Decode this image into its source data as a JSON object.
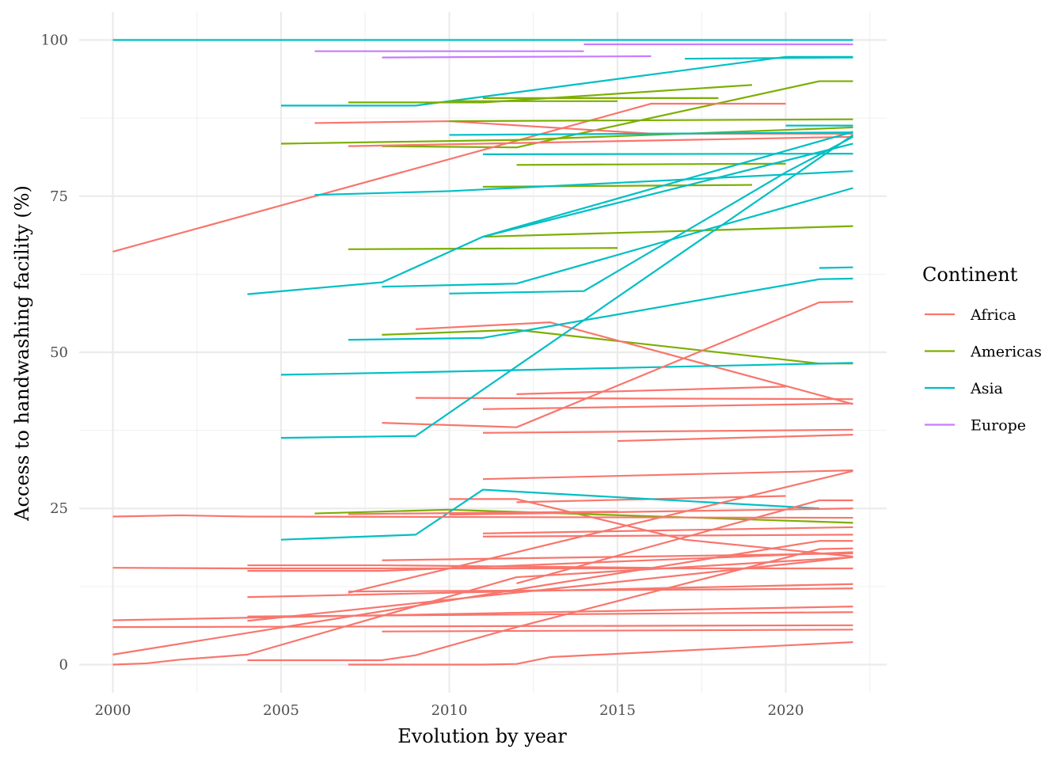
{
  "chart_data": {
    "type": "line",
    "title": "",
    "xlabel": "Evolution by year",
    "ylabel": "Access to handwashing facility (%)",
    "xlim": [
      1999,
      2023
    ],
    "ylim": [
      -4.5,
      104.5
    ],
    "x_ticks": [
      2000,
      2005,
      2010,
      2015,
      2020
    ],
    "y_ticks": [
      0,
      25,
      50,
      75,
      100
    ],
    "grid": true,
    "legend": {
      "title": "Continent",
      "position": "right"
    },
    "colors": {
      "Africa": "#F8766D",
      "Americas": "#7CAE00",
      "Asia": "#00BFC4",
      "Europe": "#C77CFF"
    },
    "series": [
      {
        "continent": "Asia",
        "points": [
          [
            2000,
            100
          ],
          [
            2022,
            100
          ]
        ]
      },
      {
        "continent": "Europe",
        "points": [
          [
            2006,
            98.2
          ],
          [
            2014,
            98.2
          ]
        ]
      },
      {
        "continent": "Europe",
        "points": [
          [
            2014,
            99.3
          ],
          [
            2022,
            99.3
          ]
        ]
      },
      {
        "continent": "Europe",
        "points": [
          [
            2008,
            97.2
          ],
          [
            2016,
            97.4
          ]
        ]
      },
      {
        "continent": "Asia",
        "points": [
          [
            2017,
            97.0
          ],
          [
            2022,
            97.2
          ]
        ]
      },
      {
        "continent": "Asia",
        "points": [
          [
            2005,
            89.5
          ],
          [
            2009,
            89.5
          ],
          [
            2020,
            97.3
          ],
          [
            2022,
            97.3
          ]
        ]
      },
      {
        "continent": "Americas",
        "points": [
          [
            2007,
            90.0
          ],
          [
            2011,
            90.0
          ],
          [
            2019,
            92.8
          ]
        ]
      },
      {
        "continent": "Americas",
        "points": [
          [
            2011,
            90.7
          ],
          [
            2018,
            90.7
          ]
        ]
      },
      {
        "continent": "Americas",
        "points": [
          [
            2010,
            90.2
          ],
          [
            2015,
            90.2
          ]
        ]
      },
      {
        "continent": "Americas",
        "points": [
          [
            2008,
            83.0
          ],
          [
            2012,
            82.8
          ],
          [
            2021,
            93.4
          ],
          [
            2022,
            93.4
          ]
        ]
      },
      {
        "continent": "Africa",
        "points": [
          [
            2000,
            66.1
          ],
          [
            2016,
            89.8
          ],
          [
            2020,
            89.8
          ]
        ]
      },
      {
        "continent": "Africa",
        "points": [
          [
            2006,
            86.7
          ],
          [
            2010,
            87.0
          ],
          [
            2016,
            85.0
          ],
          [
            2022,
            85.0
          ]
        ]
      },
      {
        "continent": "Americas",
        "points": [
          [
            2010,
            87.0
          ],
          [
            2022,
            87.3
          ]
        ]
      },
      {
        "continent": "Americas",
        "points": [
          [
            2005,
            83.4
          ],
          [
            2012,
            84.0
          ],
          [
            2022,
            86.0
          ]
        ]
      },
      {
        "continent": "Asia",
        "points": [
          [
            2020,
            86.3
          ],
          [
            2022,
            86.3
          ]
        ]
      },
      {
        "continent": "Africa",
        "points": [
          [
            2007,
            83.0
          ],
          [
            2022,
            84.5
          ]
        ]
      },
      {
        "continent": "Asia",
        "points": [
          [
            2010,
            84.8
          ],
          [
            2022,
            85.2
          ]
        ]
      },
      {
        "continent": "Asia",
        "points": [
          [
            2011,
            81.7
          ],
          [
            2022,
            81.8
          ]
        ]
      },
      {
        "continent": "Americas",
        "points": [
          [
            2012,
            80.0
          ],
          [
            2020,
            80.2
          ]
        ]
      },
      {
        "continent": "Americas",
        "points": [
          [
            2011,
            76.5
          ],
          [
            2019,
            76.8
          ]
        ]
      },
      {
        "continent": "Asia",
        "points": [
          [
            2006,
            75.2
          ],
          [
            2010,
            75.8
          ],
          [
            2022,
            79.0
          ]
        ]
      },
      {
        "continent": "Asia",
        "points": [
          [
            2011,
            68.5
          ],
          [
            2022,
            85.3
          ]
        ]
      },
      {
        "continent": "Americas",
        "points": [
          [
            2011,
            68.5
          ],
          [
            2022,
            70.2
          ]
        ]
      },
      {
        "continent": "Americas",
        "points": [
          [
            2007,
            66.5
          ],
          [
            2015,
            66.7
          ]
        ]
      },
      {
        "continent": "Asia",
        "points": [
          [
            2004,
            59.3
          ],
          [
            2008,
            61.2
          ],
          [
            2011,
            68.5
          ],
          [
            2022,
            83.4
          ]
        ]
      },
      {
        "continent": "Asia",
        "points": [
          [
            2008,
            60.5
          ],
          [
            2012,
            61.0
          ],
          [
            2022,
            76.3
          ]
        ]
      },
      {
        "continent": "Asia",
        "points": [
          [
            2010,
            59.4
          ],
          [
            2014,
            59.8
          ],
          [
            2020,
            78.8
          ],
          [
            2022,
            84.5
          ]
        ]
      },
      {
        "continent": "Asia",
        "points": [
          [
            2021,
            63.5
          ],
          [
            2022,
            63.6
          ]
        ]
      },
      {
        "continent": "Americas",
        "points": [
          [
            2008,
            52.8
          ],
          [
            2012,
            53.6
          ],
          [
            2021,
            48.2
          ],
          [
            2022,
            48.2
          ]
        ]
      },
      {
        "continent": "Africa",
        "points": [
          [
            2009,
            53.7
          ],
          [
            2013,
            54.8
          ],
          [
            2022,
            41.7
          ]
        ]
      },
      {
        "continent": "Asia",
        "points": [
          [
            2007,
            52.0
          ],
          [
            2011,
            52.3
          ],
          [
            2021,
            61.7
          ],
          [
            2022,
            61.8
          ]
        ]
      },
      {
        "continent": "Asia",
        "points": [
          [
            2005,
            46.4
          ],
          [
            2009,
            46.8
          ],
          [
            2022,
            48.3
          ]
        ]
      },
      {
        "continent": "Africa",
        "points": [
          [
            2009,
            42.7
          ],
          [
            2022,
            42.5
          ]
        ]
      },
      {
        "continent": "Africa",
        "points": [
          [
            2012,
            43.3
          ],
          [
            2020,
            44.5
          ]
        ]
      },
      {
        "continent": "Africa",
        "points": [
          [
            2011,
            40.9
          ],
          [
            2022,
            41.8
          ]
        ]
      },
      {
        "continent": "Africa",
        "points": [
          [
            2008,
            38.7
          ],
          [
            2012,
            38.0
          ],
          [
            2021,
            58.0
          ],
          [
            2022,
            58.1
          ]
        ]
      },
      {
        "continent": "Asia",
        "points": [
          [
            2005,
            36.3
          ],
          [
            2009,
            36.6
          ],
          [
            2022,
            84.8
          ]
        ]
      },
      {
        "continent": "Africa",
        "points": [
          [
            2011,
            37.1
          ],
          [
            2022,
            37.6
          ]
        ]
      },
      {
        "continent": "Africa",
        "points": [
          [
            2015,
            35.8
          ],
          [
            2022,
            36.8
          ]
        ]
      },
      {
        "continent": "Africa",
        "points": [
          [
            2011,
            29.7
          ],
          [
            2022,
            31.1
          ]
        ]
      },
      {
        "continent": "Africa",
        "points": [
          [
            2010,
            26.5
          ],
          [
            2012,
            26.5
          ],
          [
            2017,
            20.0
          ],
          [
            2022,
            17.3
          ]
        ]
      },
      {
        "continent": "Africa",
        "points": [
          [
            2012,
            26.0
          ],
          [
            2020,
            27.0
          ]
        ]
      },
      {
        "continent": "Americas",
        "points": [
          [
            2006,
            24.2
          ],
          [
            2010,
            24.8
          ],
          [
            2022,
            22.7
          ]
        ]
      },
      {
        "continent": "Asia",
        "points": [
          [
            2005,
            20.0
          ],
          [
            2009,
            20.8
          ],
          [
            2011,
            28.0
          ],
          [
            2021,
            25.0
          ]
        ]
      },
      {
        "continent": "Africa",
        "points": [
          [
            2000,
            23.7
          ],
          [
            2002,
            23.9
          ],
          [
            2004,
            23.7
          ],
          [
            2022,
            23.5
          ]
        ]
      },
      {
        "continent": "Africa",
        "points": [
          [
            2007,
            24.1
          ],
          [
            2015,
            24.5
          ]
        ]
      },
      {
        "continent": "Africa",
        "points": [
          [
            2010,
            24.0
          ],
          [
            2022,
            25.0
          ]
        ]
      },
      {
        "continent": "Africa",
        "points": [
          [
            2011,
            21.0
          ],
          [
            2022,
            22.0
          ]
        ]
      },
      {
        "continent": "Africa",
        "points": [
          [
            2011,
            20.5
          ],
          [
            2022,
            20.8
          ]
        ]
      },
      {
        "continent": "Africa",
        "points": [
          [
            2012,
            13.0
          ],
          [
            2021,
            26.3
          ],
          [
            2022,
            26.3
          ]
        ]
      },
      {
        "continent": "Africa",
        "points": [
          [
            2007,
            11.5
          ],
          [
            2022,
            31.0
          ]
        ]
      },
      {
        "continent": "Africa",
        "points": [
          [
            2000,
            15.5
          ],
          [
            2004,
            15.4
          ],
          [
            2022,
            15.4
          ]
        ]
      },
      {
        "continent": "Africa",
        "points": [
          [
            2004,
            15.9
          ],
          [
            2008,
            15.9
          ],
          [
            2016,
            15.5
          ]
        ]
      },
      {
        "continent": "Africa",
        "points": [
          [
            2004,
            15.0
          ],
          [
            2008,
            15.0
          ],
          [
            2022,
            18.0
          ]
        ]
      },
      {
        "continent": "Africa",
        "points": [
          [
            2008,
            16.7
          ],
          [
            2022,
            17.8
          ]
        ]
      },
      {
        "continent": "Africa",
        "points": [
          [
            2004,
            10.8
          ],
          [
            2022,
            12.9
          ]
        ]
      },
      {
        "continent": "Africa",
        "points": [
          [
            2007,
            11.7
          ],
          [
            2020,
            12.1
          ],
          [
            2022,
            12.2
          ]
        ]
      },
      {
        "continent": "Africa",
        "points": [
          [
            2000,
            7.1
          ],
          [
            2022,
            9.3
          ]
        ]
      },
      {
        "continent": "Africa",
        "points": [
          [
            2004,
            7.7
          ],
          [
            2022,
            8.4
          ]
        ]
      },
      {
        "continent": "Africa",
        "points": [
          [
            2000,
            6.0
          ],
          [
            2022,
            6.3
          ]
        ]
      },
      {
        "continent": "Africa",
        "points": [
          [
            2004,
            7.0
          ],
          [
            2022,
            17.2
          ]
        ]
      },
      {
        "continent": "Africa",
        "points": [
          [
            2008,
            5.3
          ],
          [
            2022,
            5.6
          ]
        ]
      },
      {
        "continent": "Africa",
        "points": [
          [
            2000,
            1.6
          ],
          [
            2021,
            19.8
          ],
          [
            2022,
            19.8
          ]
        ]
      },
      {
        "continent": "Africa",
        "points": [
          [
            2004,
            0.7
          ],
          [
            2008,
            0.7
          ],
          [
            2009,
            1.5
          ],
          [
            2012,
            6.0
          ],
          [
            2021,
            18.5
          ],
          [
            2022,
            18.6
          ]
        ]
      },
      {
        "continent": "Africa",
        "points": [
          [
            2000,
            0.0
          ],
          [
            2001,
            0.2
          ],
          [
            2002,
            0.8
          ],
          [
            2004,
            1.6
          ],
          [
            2012,
            14.0
          ],
          [
            2022,
            17.2
          ]
        ]
      },
      {
        "continent": "Africa",
        "points": [
          [
            2007,
            0.0
          ],
          [
            2011,
            0.0
          ],
          [
            2012,
            0.1
          ],
          [
            2013,
            1.2
          ],
          [
            2022,
            3.6
          ]
        ]
      }
    ]
  }
}
